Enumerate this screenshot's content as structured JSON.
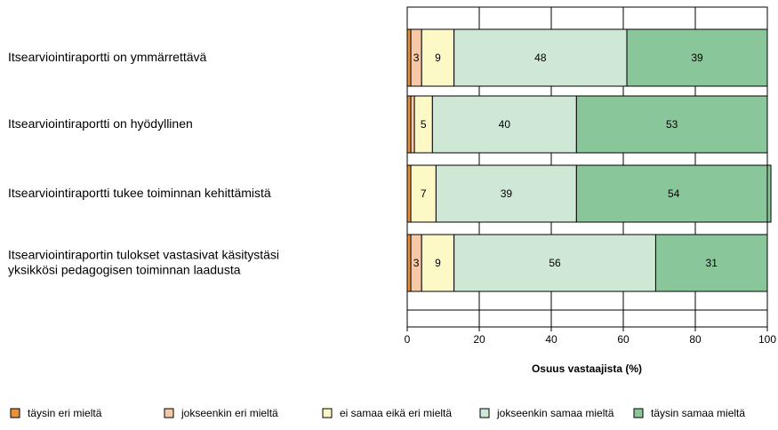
{
  "chart_data": {
    "type": "bar",
    "orientation": "horizontal",
    "stacked": true,
    "categories": [
      [
        "Itsearviointiraportti on ymmärrettävä"
      ],
      [
        "Itsearviointiraportti on hyödyllinen"
      ],
      [
        "Itsearviointiraportti tukee toiminnan kehittämistä"
      ],
      [
        "Itsearviointiraportin tulokset vastasivat käsitystäsi",
        "yksikkösi pedagogisen toiminnan laadusta"
      ]
    ],
    "series": [
      {
        "name": "täysin eri mieltä",
        "color": "#e8913a",
        "values": [
          1,
          1,
          1,
          1
        ],
        "labels": [
          "",
          "",
          "",
          ""
        ]
      },
      {
        "name": "jokseenkin eri mieltä",
        "color": "#f7c8a6",
        "values": [
          3,
          1,
          0,
          3
        ],
        "labels": [
          "3",
          "",
          "",
          "3"
        ]
      },
      {
        "name": "ei samaa eikä eri mieltä",
        "color": "#fdf9c6",
        "values": [
          9,
          5,
          7,
          9
        ],
        "labels": [
          "9",
          "5",
          "7",
          "9"
        ]
      },
      {
        "name": "jokseenkin samaa mieltä",
        "color": "#cfe8d6",
        "values": [
          48,
          40,
          39,
          56
        ],
        "labels": [
          "48",
          "40",
          "39",
          "56"
        ]
      },
      {
        "name": "täysin samaa mieltä",
        "color": "#89c79b",
        "values": [
          39,
          53,
          54,
          31
        ],
        "labels": [
          "39",
          "53",
          "54",
          "31"
        ]
      }
    ],
    "xlabel": "Osuus vastaajista (%)",
    "xlim": [
      0,
      100
    ],
    "xticks": [
      "0",
      "20",
      "40",
      "60",
      "80",
      "100"
    ],
    "grid": true,
    "legend_position": "bottom"
  }
}
